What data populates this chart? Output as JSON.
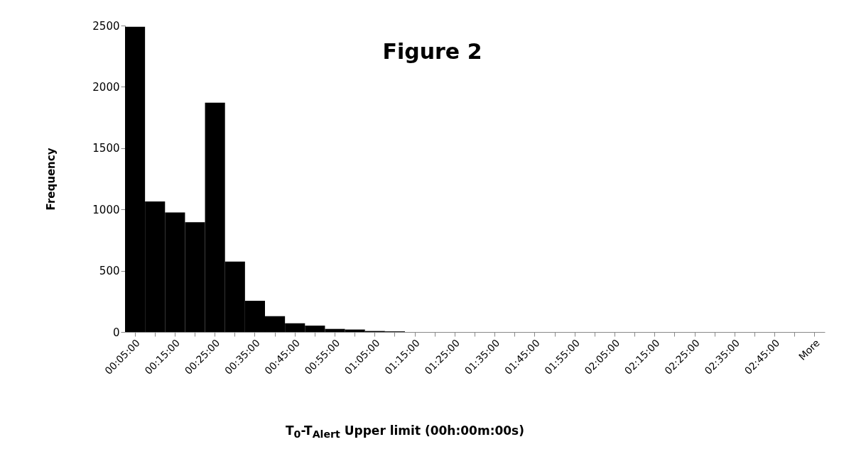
{
  "chart_data": {
    "type": "bar",
    "title": "Figure 2",
    "xlabel": "T$_{0}$-T$_{Alert}$ Upper limit (00h:00m:00s)",
    "ylabel": "Frequency",
    "categories": [
      "00:05:00",
      null,
      "00:15:00",
      null,
      "00:25:00",
      null,
      "00:35:00",
      null,
      "00:45:00",
      null,
      "00:55:00",
      null,
      "01:05:00",
      null,
      "01:15:00",
      null,
      "01:25:00",
      null,
      "01:35:00",
      null,
      "01:45:00",
      null,
      "01:55:00",
      null,
      "02:05:00",
      null,
      "02:15:00",
      null,
      "02:25:00",
      null,
      "02:35:00",
      null,
      "02:45:00",
      null,
      "More"
    ],
    "values": [
      2490,
      1065,
      975,
      895,
      1870,
      575,
      255,
      129,
      71,
      52,
      25,
      20,
      8,
      5,
      0,
      0,
      0,
      0,
      0,
      0,
      0,
      0,
      0,
      0,
      0,
      0,
      0,
      0,
      0,
      0,
      0,
      0,
      0,
      0,
      0
    ],
    "color": "#000000",
    "ylim": [
      0,
      2500
    ],
    "yticks": [
      0,
      500,
      1000,
      1500,
      2000,
      2500
    ]
  }
}
